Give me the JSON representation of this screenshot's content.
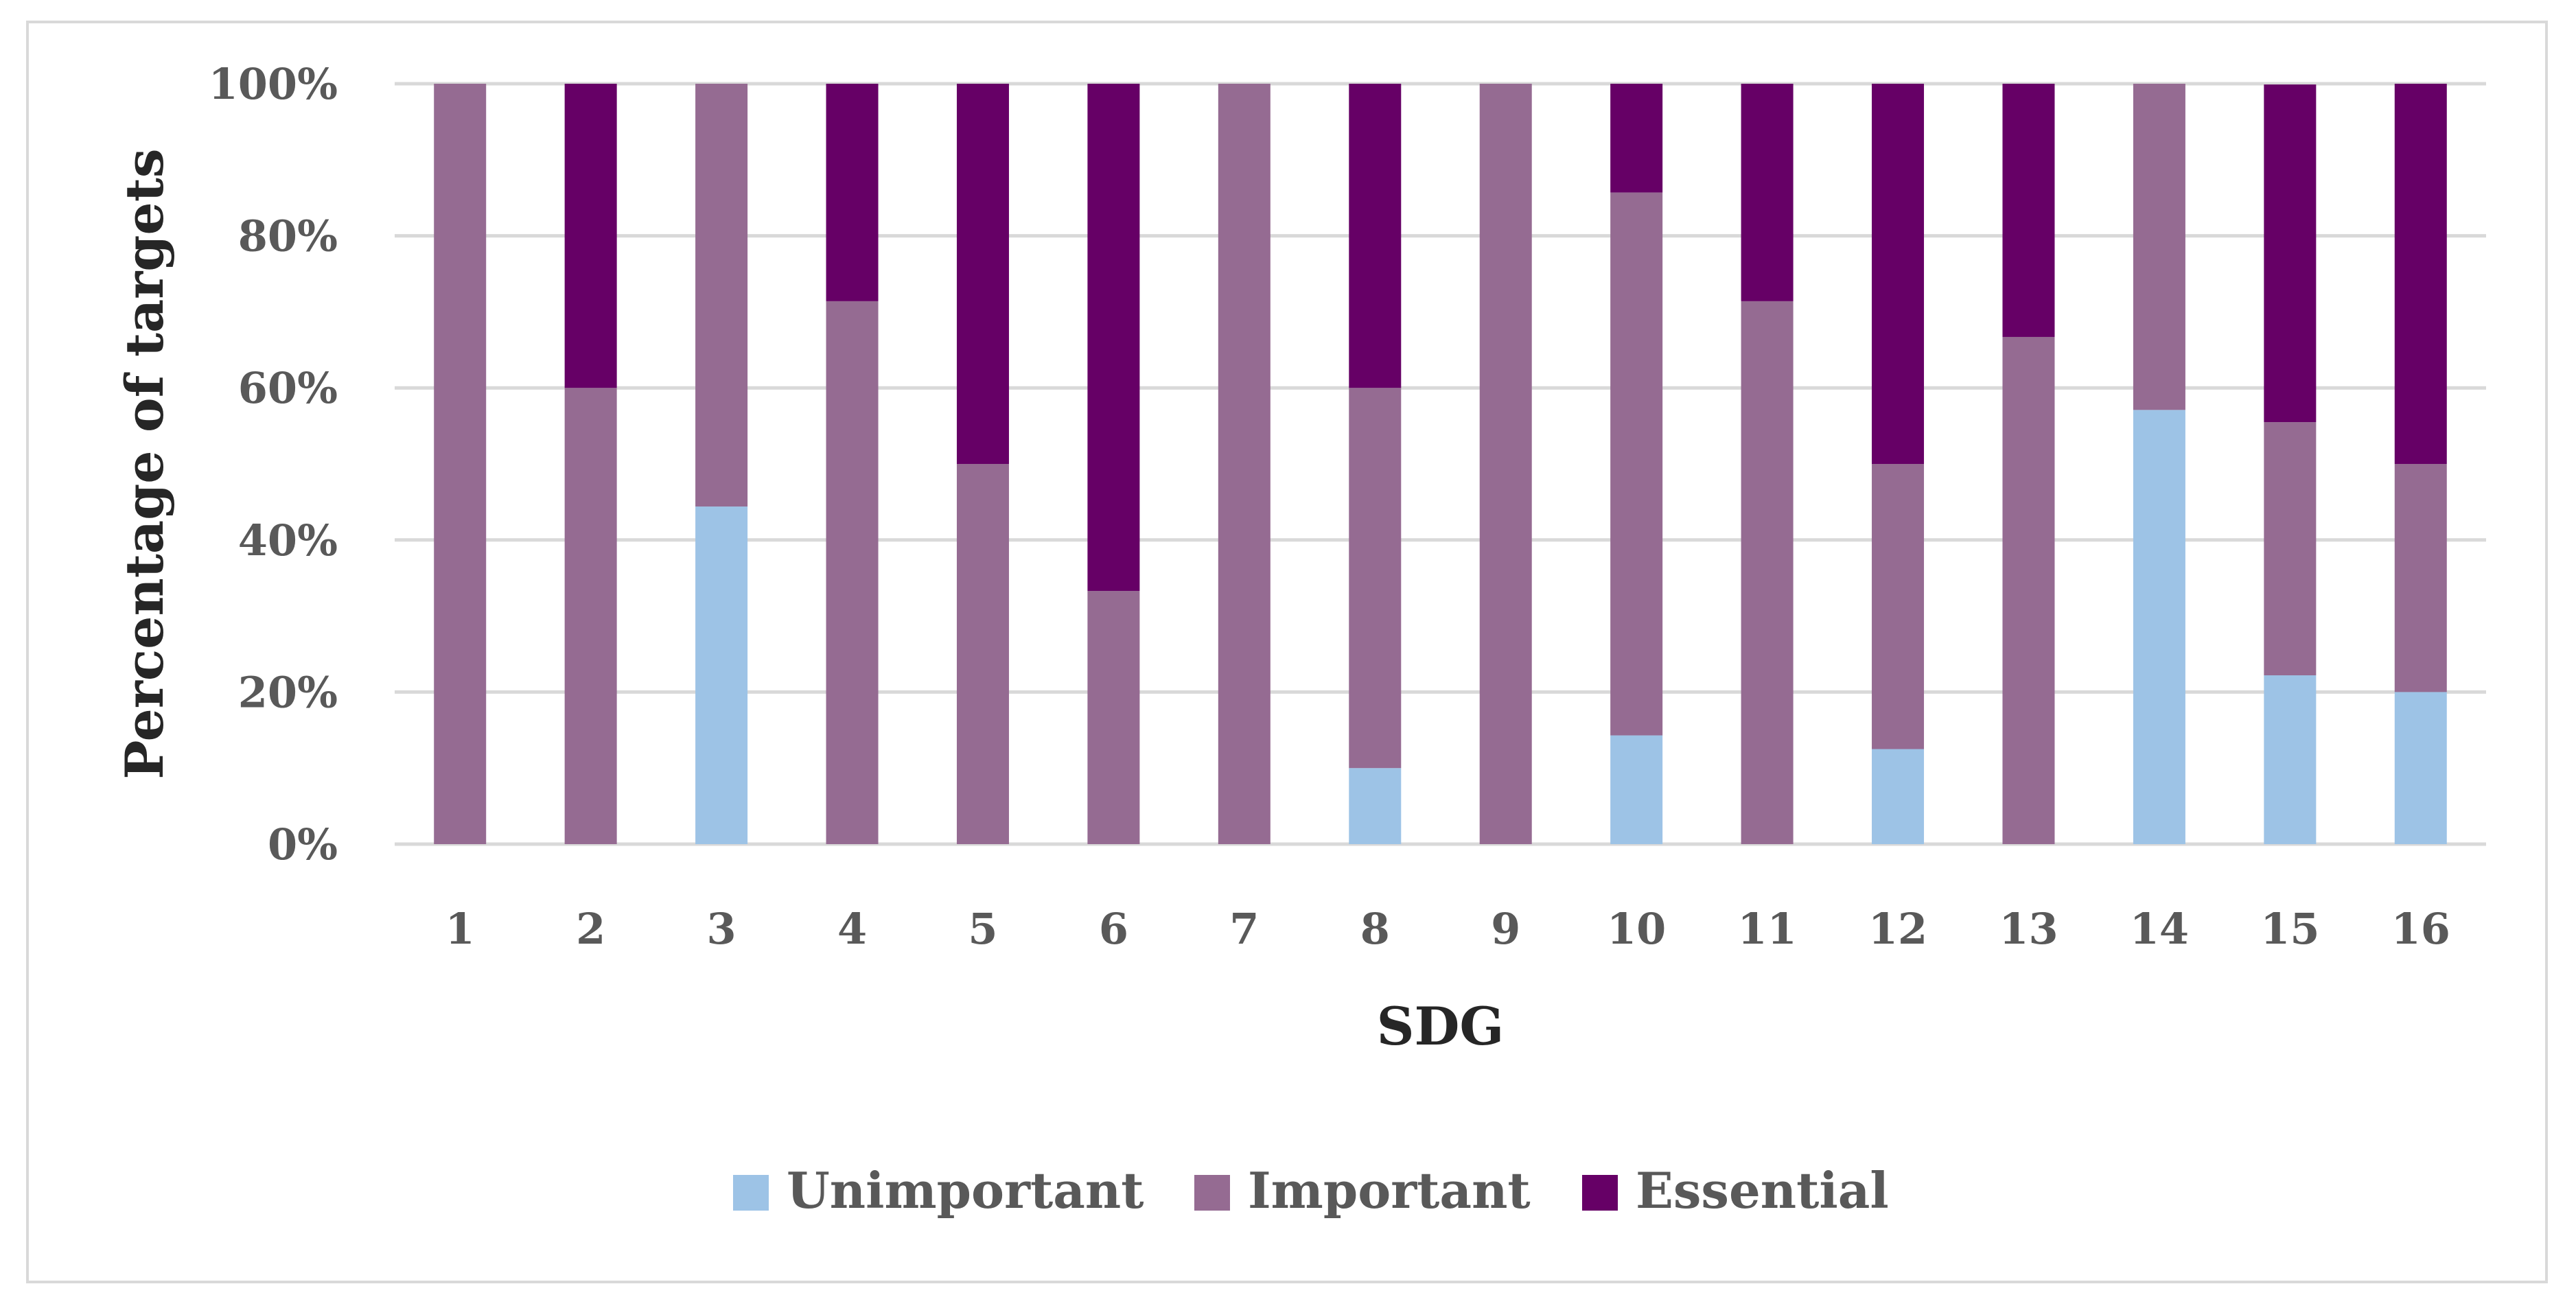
{
  "chart_data": {
    "type": "bar",
    "stacked": true,
    "percent": true,
    "title": "",
    "xlabel": "SDG",
    "ylabel": "Percentage of targets",
    "categories": [
      "1",
      "2",
      "3",
      "4",
      "5",
      "6",
      "7",
      "8",
      "9",
      "10",
      "11",
      "12",
      "13",
      "14",
      "15",
      "16"
    ],
    "series": [
      {
        "name": "Unimportant",
        "color": "#9dc3e6",
        "values": [
          0,
          0,
          44.4,
          0,
          0,
          0,
          0,
          10,
          0,
          14.3,
          0,
          12.5,
          0,
          57.1,
          22.2,
          20
        ]
      },
      {
        "name": "Important",
        "color": "#956b92",
        "values": [
          100,
          60,
          55.6,
          71.4,
          50,
          33.3,
          100,
          50,
          100,
          71.4,
          71.4,
          37.5,
          66.7,
          42.9,
          33.3,
          30
        ]
      },
      {
        "name": "Essential",
        "color": "#660066",
        "values": [
          0,
          40,
          0,
          28.6,
          50,
          66.7,
          0,
          40,
          0,
          14.3,
          28.6,
          50,
          33.3,
          0,
          44.4,
          50
        ]
      }
    ],
    "ylim": [
      0,
      100
    ],
    "yticks": [
      "0%",
      "20%",
      "40%",
      "60%",
      "80%",
      "100%"
    ],
    "grid": true,
    "legend_position": "bottom"
  }
}
